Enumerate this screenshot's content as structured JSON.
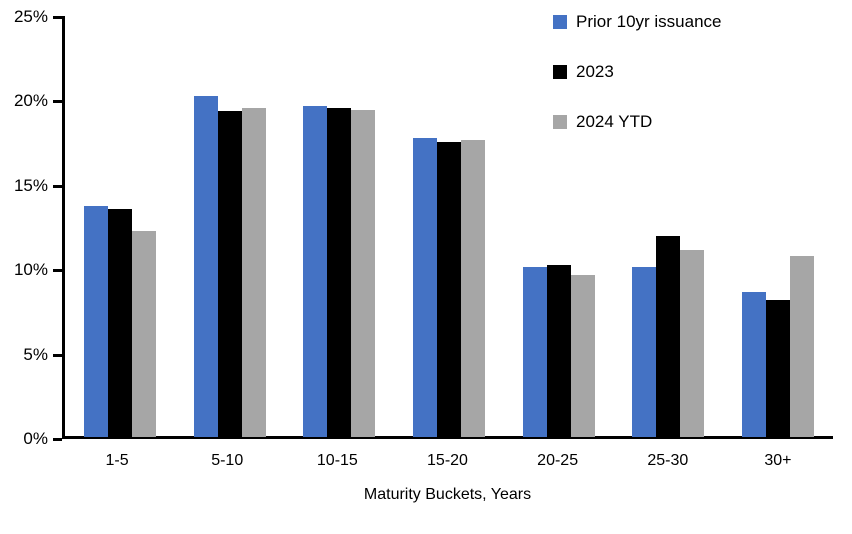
{
  "chart_data": {
    "type": "bar",
    "categories": [
      "1-5",
      "5-10",
      "10-15",
      "15-20",
      "20-25",
      "25-30",
      "30+"
    ],
    "series": [
      {
        "name": "Prior 10yr issuance",
        "color": "#4472C4",
        "values": [
          13.7,
          20.2,
          19.6,
          17.7,
          10.1,
          10.1,
          8.6
        ]
      },
      {
        "name": "2023",
        "color": "#000000",
        "values": [
          13.5,
          19.3,
          19.5,
          17.5,
          10.2,
          11.9,
          8.1
        ]
      },
      {
        "name": "2024 YTD",
        "color": "#A6A6A6",
        "values": [
          12.2,
          19.5,
          19.4,
          17.6,
          9.6,
          11.1,
          10.7
        ]
      }
    ],
    "xlabel": "Maturity Buckets, Years",
    "ylabel": "",
    "ylim": [
      0,
      25
    ],
    "ytick_step": 5,
    "ytick_labels": [
      "0%",
      "5%",
      "10%",
      "15%",
      "20%",
      "25%"
    ],
    "grid": false,
    "legend_position": "top-right",
    "axis_color": "#000000",
    "background_color": "#ffffff"
  }
}
